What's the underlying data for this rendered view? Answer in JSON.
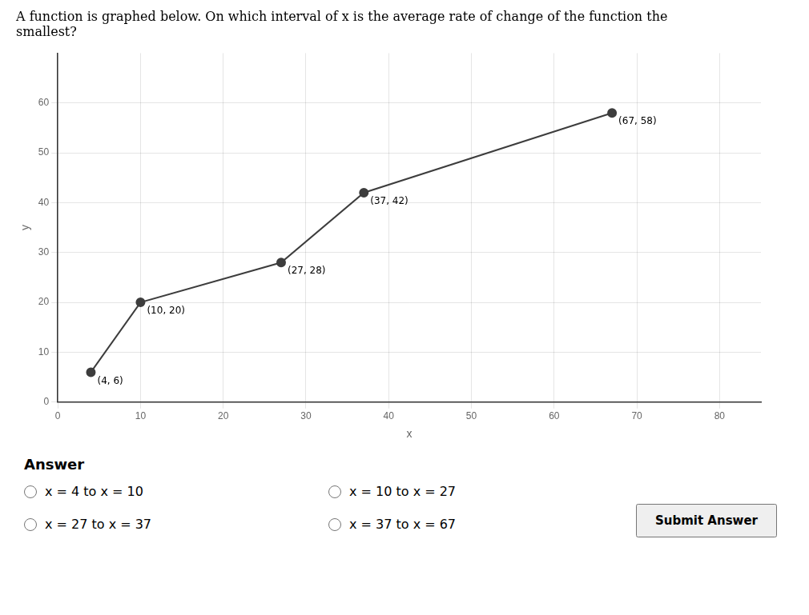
{
  "chart_data": {
    "type": "line",
    "title": "A function is graphed below. On which interval of x is the average rate of change of the function the\nsmallest?",
    "x": [
      4,
      10,
      27,
      37,
      67
    ],
    "values": [
      6,
      20,
      28,
      42,
      58
    ],
    "value_labels": [
      "(4, 6)",
      "(10, 20)",
      "(27, 28)",
      "(37, 42)",
      "(67, 58)"
    ],
    "data_labels": true,
    "color": "#3d3d3d",
    "marker": "circle",
    "x_label": "x",
    "y_label": "y",
    "xlim": [
      0,
      85
    ],
    "ylim": [
      0,
      70
    ],
    "xticks": [
      0,
      10,
      20,
      30,
      40,
      50,
      60,
      70,
      80
    ],
    "yticks": [
      0,
      10,
      20,
      30,
      40,
      50,
      60
    ],
    "grid": true,
    "annotations": [
      "Answer",
      "x = 4 to x = 10",
      "x = 27 to x = 37",
      "x = 10 to x = 27",
      "x = 37 to x = 67",
      "Submit Answer"
    ]
  }
}
